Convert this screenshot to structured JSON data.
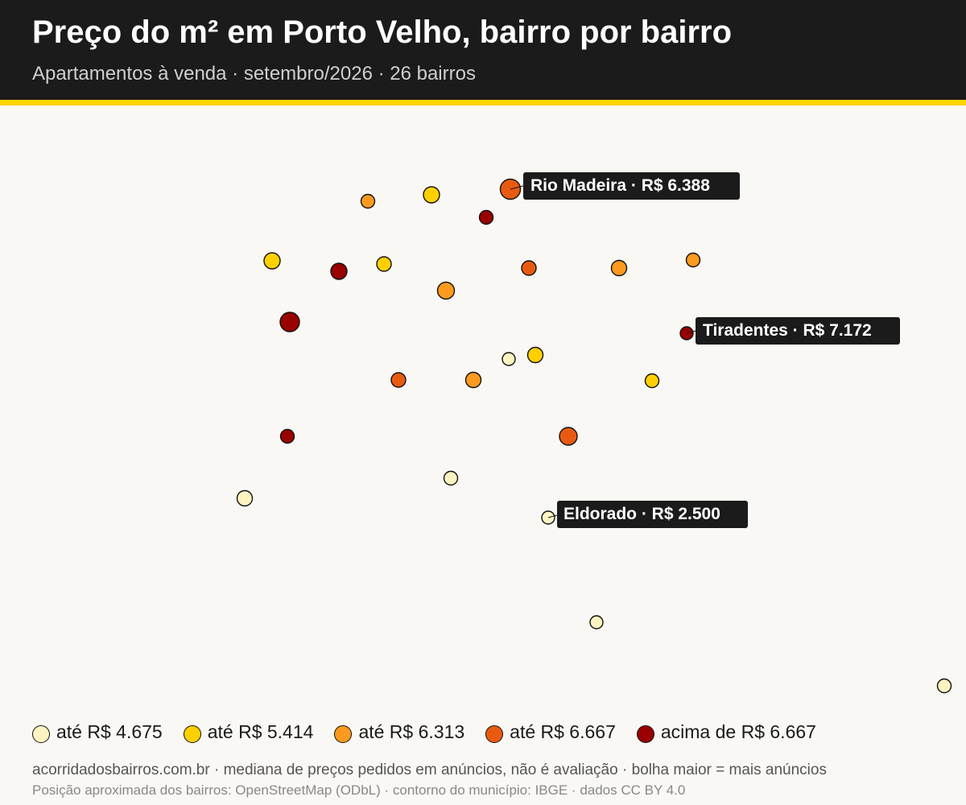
{
  "header": {
    "title": "Preço do m² em Porto Velho, bairro por bairro",
    "subtitle": "Apartamentos à venda · setembro/2026 · 26 bairros"
  },
  "colors": {
    "header_bg": "#1b1b1b",
    "accent": "#ffd400",
    "background": "#faf8f4",
    "class_1": "#fff3c2",
    "class_2": "#ffd000",
    "class_3": "#fb9a1e",
    "class_4": "#e85a10",
    "class_5": "#990000"
  },
  "legend": [
    {
      "label": "até R$ 4.675",
      "color": "#fff3c2"
    },
    {
      "label": "até R$ 5.414",
      "color": "#ffd000"
    },
    {
      "label": "até R$ 6.313",
      "color": "#fb9a1e"
    },
    {
      "label": "até R$ 6.667",
      "color": "#e85a10"
    },
    {
      "label": "acima de R$ 6.667",
      "color": "#990000"
    }
  ],
  "callouts": [
    {
      "text": "Rio Madeira · R$ 6.388"
    },
    {
      "text": "Tiradentes · R$ 7.172"
    },
    {
      "text": "Eldorado · R$ 2.500"
    }
  ],
  "footer": {
    "line1": "acorridadosbairros.com.br · mediana de preços pedidos em anúncios, não é avaliação · bolha maior = mais anúncios",
    "line2": "Posição aproximada dos bairros: OpenStreetMap (ODbL) · contorno do município: IBGE · dados CC BY 4.0"
  }
}
